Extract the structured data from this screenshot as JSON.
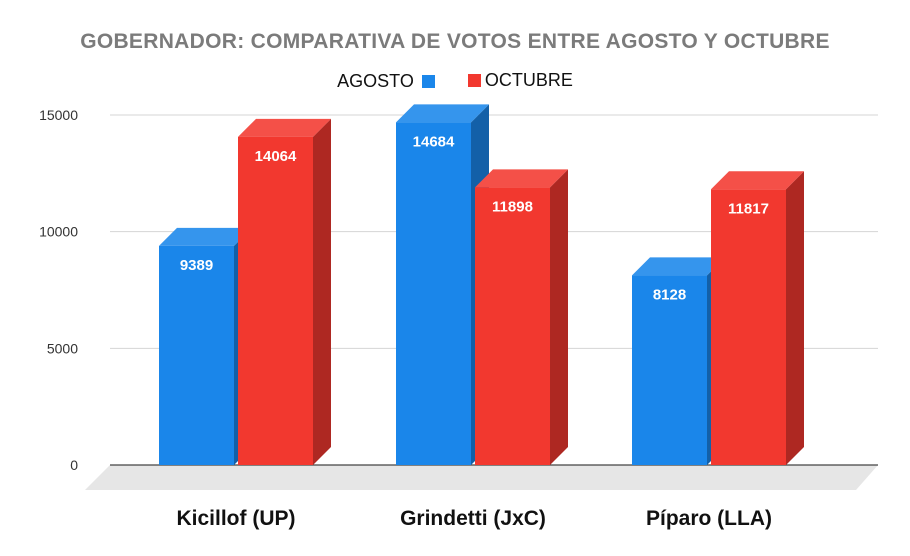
{
  "chart_data": {
    "type": "bar",
    "title": "GOBERNADOR: COMPARATIVA DE VOTOS ENTRE AGOSTO Y OCTUBRE",
    "categories": [
      "Kicillof (UP)",
      "Grindetti (JxC)",
      "Píparo (LLA)"
    ],
    "series": [
      {
        "name": "AGOSTO",
        "color": "#1a86ea",
        "values": [
          9389,
          14684,
          8128
        ]
      },
      {
        "name": "OCTUBRE",
        "color": "#f2382f",
        "values": [
          14064,
          11898,
          11817
        ]
      }
    ],
    "ylim": [
      0,
      15000
    ],
    "yticks": [
      0,
      5000,
      10000,
      15000
    ],
    "grid": true,
    "legend_position": "top",
    "style": "3d-bars"
  }
}
